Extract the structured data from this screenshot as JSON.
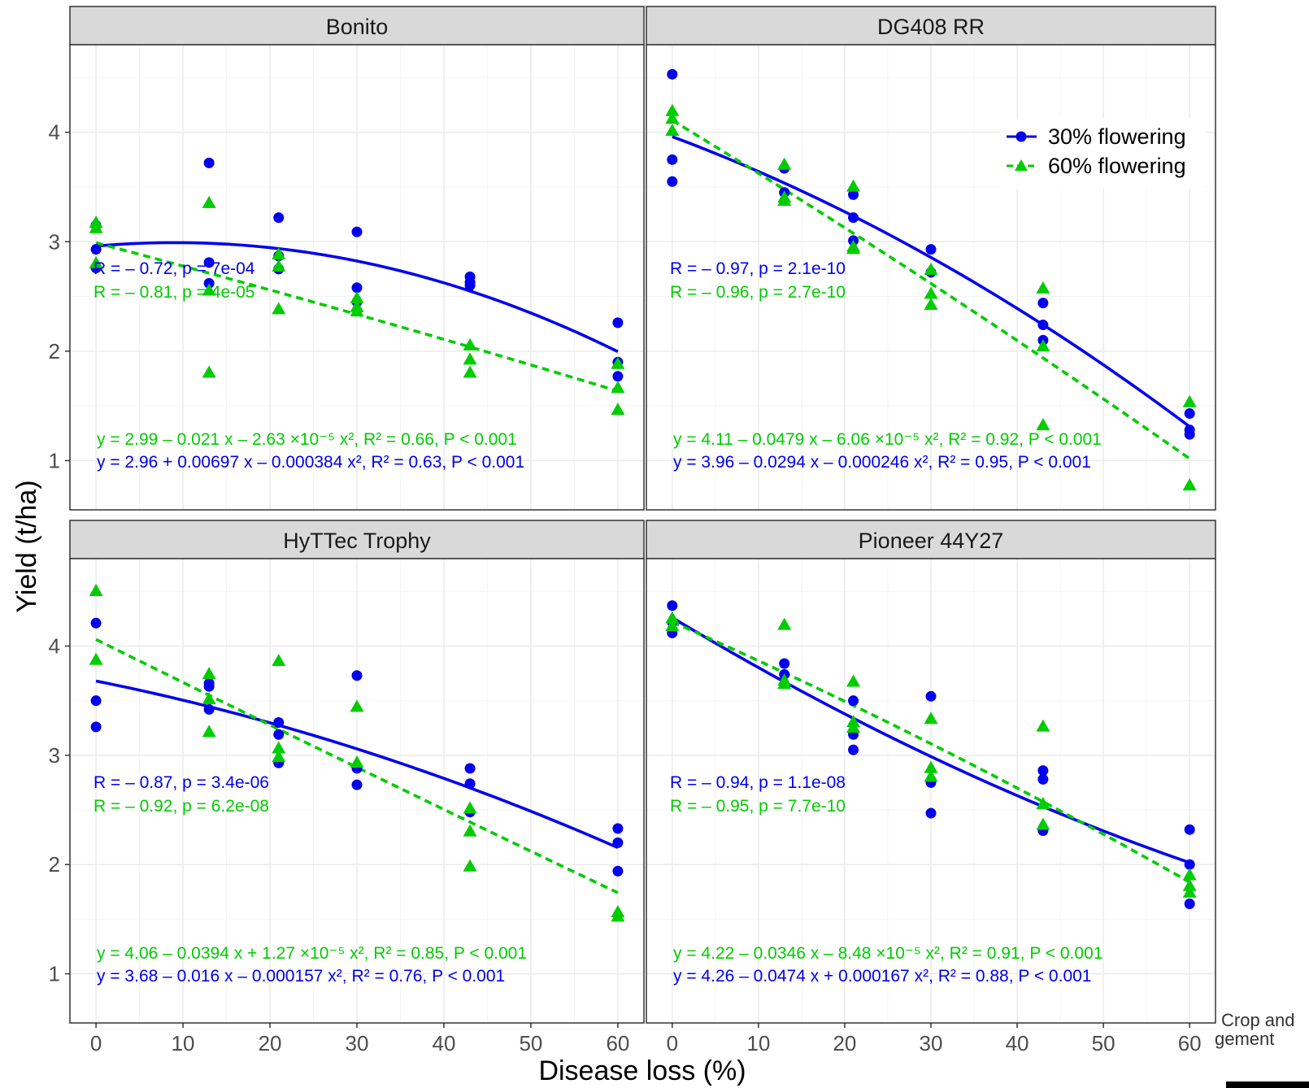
{
  "chart_data": {
    "type": "scatter",
    "xlabel": "Disease loss (%)",
    "ylabel": "Yield (t/ha)",
    "xlim": [
      -3,
      63
    ],
    "ylim": [
      0.55,
      4.8
    ],
    "x_ticks": [
      0,
      10,
      20,
      30,
      40,
      50,
      60
    ],
    "y_ticks": [
      1,
      2,
      3,
      4
    ],
    "grid": "on",
    "legend": {
      "placement": "top-right of DG408 RR panel",
      "entries": [
        {
          "label": "30% flowering",
          "color": "#0000ee",
          "marker": "circle",
          "line": "solid"
        },
        {
          "label": "60% flowering",
          "color": "#00cc00",
          "marker": "triangle",
          "line": "dashed"
        }
      ]
    },
    "credit_text": [
      "Crop and",
      "gement"
    ],
    "panels": [
      {
        "title": "Bonito",
        "series": [
          {
            "name": "30% flowering",
            "color": "#0000ee",
            "points": [
              [
                0,
                3.15
              ],
              [
                0,
                2.93
              ],
              [
                0,
                2.76
              ],
              [
                13,
                3.72
              ],
              [
                13,
                2.81
              ],
              [
                13,
                2.62
              ],
              [
                21,
                3.22
              ],
              [
                21,
                2.87
              ],
              [
                21,
                2.75
              ],
              [
                30,
                3.09
              ],
              [
                30,
                2.58
              ],
              [
                30,
                2.45
              ],
              [
                43,
                2.68
              ],
              [
                43,
                2.63
              ],
              [
                43,
                2.6
              ],
              [
                60,
                2.26
              ],
              [
                60,
                1.9
              ],
              [
                60,
                1.77
              ]
            ],
            "fit": [
              2.96,
              0.00697,
              -0.000384
            ],
            "cor_text": "R = – 0.72, p = 7e-04",
            "eq_text": "y = 2.96 + 0.00697 x – 0.000384 x², R² = 0.63, P < 0.001"
          },
          {
            "name": "60% flowering",
            "color": "#00cc00",
            "points": [
              [
                0,
                3.17
              ],
              [
                0,
                3.12
              ],
              [
                0,
                2.8
              ],
              [
                13,
                3.35
              ],
              [
                13,
                2.55
              ],
              [
                13,
                1.8
              ],
              [
                21,
                2.88
              ],
              [
                21,
                2.77
              ],
              [
                21,
                2.38
              ],
              [
                30,
                2.48
              ],
              [
                30,
                2.4
              ],
              [
                30,
                2.36
              ],
              [
                43,
                2.05
              ],
              [
                43,
                1.92
              ],
              [
                43,
                1.8
              ],
              [
                60,
                1.88
              ],
              [
                60,
                1.66
              ],
              [
                60,
                1.46
              ]
            ],
            "fit": [
              2.99,
              -0.021,
              -2.63e-05
            ],
            "cor_text": "R = – 0.81, p = 4e-05",
            "eq_text": "y = 2.99 – 0.021 x – 2.63 ×10⁻⁵ x², R² = 0.66, P < 0.001"
          }
        ]
      },
      {
        "title": "DG408 RR",
        "series": [
          {
            "name": "30% flowering",
            "color": "#0000ee",
            "points": [
              [
                0,
                4.53
              ],
              [
                0,
                3.75
              ],
              [
                0,
                3.55
              ],
              [
                13,
                3.67
              ],
              [
                13,
                3.45
              ],
              [
                21,
                3.43
              ],
              [
                21,
                3.22
              ],
              [
                21,
                3.01
              ],
              [
                30,
                2.93
              ],
              [
                30,
                2.72
              ],
              [
                43,
                2.44
              ],
              [
                43,
                2.24
              ],
              [
                43,
                2.1
              ],
              [
                60,
                1.43
              ],
              [
                60,
                1.28
              ],
              [
                60,
                1.24
              ]
            ],
            "fit": [
              3.96,
              -0.0294,
              -0.000246
            ],
            "cor_text": "R = – 0.97, p = 2.1e-10",
            "eq_text": "y = 3.96 – 0.0294 x – 0.000246 x², R² = 0.95, P < 0.001"
          },
          {
            "name": "60% flowering",
            "color": "#00cc00",
            "points": [
              [
                0,
                4.19
              ],
              [
                0,
                4.12
              ],
              [
                0,
                4.01
              ],
              [
                13,
                3.7
              ],
              [
                13,
                3.4
              ],
              [
                13,
                3.37
              ],
              [
                21,
                3.5
              ],
              [
                21,
                2.95
              ],
              [
                21,
                2.93
              ],
              [
                30,
                2.74
              ],
              [
                30,
                2.52
              ],
              [
                30,
                2.42
              ],
              [
                43,
                2.57
              ],
              [
                43,
                2.04
              ],
              [
                43,
                1.32
              ],
              [
                60,
                1.53
              ],
              [
                60,
                0.77
              ]
            ],
            "fit": [
              4.11,
              -0.0479,
              -6.06e-05
            ],
            "cor_text": "R = – 0.96, p = 2.7e-10",
            "eq_text": "y = 4.11 – 0.0479 x – 6.06 ×10⁻⁵ x², R² = 0.92, P < 0.001"
          }
        ]
      },
      {
        "title": "HyTTec Trophy",
        "series": [
          {
            "name": "30% flowering",
            "color": "#0000ee",
            "points": [
              [
                0,
                4.21
              ],
              [
                0,
                3.5
              ],
              [
                0,
                3.26
              ],
              [
                13,
                3.66
              ],
              [
                13,
                3.63
              ],
              [
                13,
                3.42
              ],
              [
                21,
                3.3
              ],
              [
                21,
                3.19
              ],
              [
                21,
                2.93
              ],
              [
                30,
                3.73
              ],
              [
                30,
                2.88
              ],
              [
                30,
                2.73
              ],
              [
                43,
                2.88
              ],
              [
                43,
                2.74
              ],
              [
                43,
                2.48
              ],
              [
                60,
                2.33
              ],
              [
                60,
                2.2
              ],
              [
                60,
                1.94
              ]
            ],
            "fit": [
              3.68,
              -0.016,
              -0.000157
            ],
            "cor_text": "R = – 0.87, p = 3.4e-06",
            "eq_text": "y = 3.68 – 0.016 x – 0.000157 x², R² = 0.76, P < 0.001"
          },
          {
            "name": "60% flowering",
            "color": "#00cc00",
            "points": [
              [
                0,
                4.5
              ],
              [
                0,
                3.87
              ],
              [
                13,
                3.74
              ],
              [
                13,
                3.51
              ],
              [
                13,
                3.21
              ],
              [
                21,
                3.86
              ],
              [
                21,
                3.06
              ],
              [
                21,
                2.98
              ],
              [
                30,
                3.44
              ],
              [
                30,
                2.93
              ],
              [
                43,
                2.51
              ],
              [
                43,
                2.3
              ],
              [
                43,
                1.98
              ],
              [
                60,
                1.56
              ],
              [
                60,
                1.52
              ]
            ],
            "fit": [
              4.06,
              -0.0394,
              1.27e-05
            ],
            "cor_text": "R = – 0.92, p = 6.2e-08",
            "eq_text": "y = 4.06 – 0.0394 x + 1.27 ×10⁻⁵ x², R² = 0.85, P < 0.001"
          }
        ]
      },
      {
        "title": "Pioneer 44Y27",
        "series": [
          {
            "name": "30% flowering",
            "color": "#0000ee",
            "points": [
              [
                0,
                4.37
              ],
              [
                0,
                4.22
              ],
              [
                0,
                4.12
              ],
              [
                13,
                3.84
              ],
              [
                13,
                3.74
              ],
              [
                21,
                3.5
              ],
              [
                21,
                3.19
              ],
              [
                21,
                3.05
              ],
              [
                30,
                3.54
              ],
              [
                30,
                2.75
              ],
              [
                30,
                2.47
              ],
              [
                43,
                2.86
              ],
              [
                43,
                2.78
              ],
              [
                43,
                2.31
              ],
              [
                60,
                2.32
              ],
              [
                60,
                2.0
              ],
              [
                60,
                1.64
              ]
            ],
            "fit": [
              4.26,
              -0.0474,
              0.000167
            ],
            "cor_text": "R = – 0.94, p = 1.1e-08",
            "eq_text": "y = 4.26 – 0.0474 x + 0.000167 x², R² = 0.88, P < 0.001"
          },
          {
            "name": "60% flowering",
            "color": "#00cc00",
            "points": [
              [
                0,
                4.25
              ],
              [
                0,
                4.18
              ],
              [
                13,
                4.19
              ],
              [
                13,
                3.68
              ],
              [
                13,
                3.65
              ],
              [
                21,
                3.67
              ],
              [
                21,
                3.3
              ],
              [
                21,
                3.25
              ],
              [
                30,
                3.33
              ],
              [
                30,
                2.88
              ],
              [
                30,
                2.8
              ],
              [
                43,
                3.26
              ],
              [
                43,
                2.55
              ],
              [
                43,
                2.36
              ],
              [
                60,
                1.9
              ],
              [
                60,
                1.8
              ],
              [
                60,
                1.74
              ]
            ],
            "fit": [
              4.22,
              -0.0346,
              -8.48e-05
            ],
            "cor_text": "R = – 0.95, p = 7.7e-10",
            "eq_text": "y = 4.22 – 0.0346 x – 8.48 ×10⁻⁵ x², R² = 0.91, P < 0.001"
          }
        ]
      }
    ]
  }
}
